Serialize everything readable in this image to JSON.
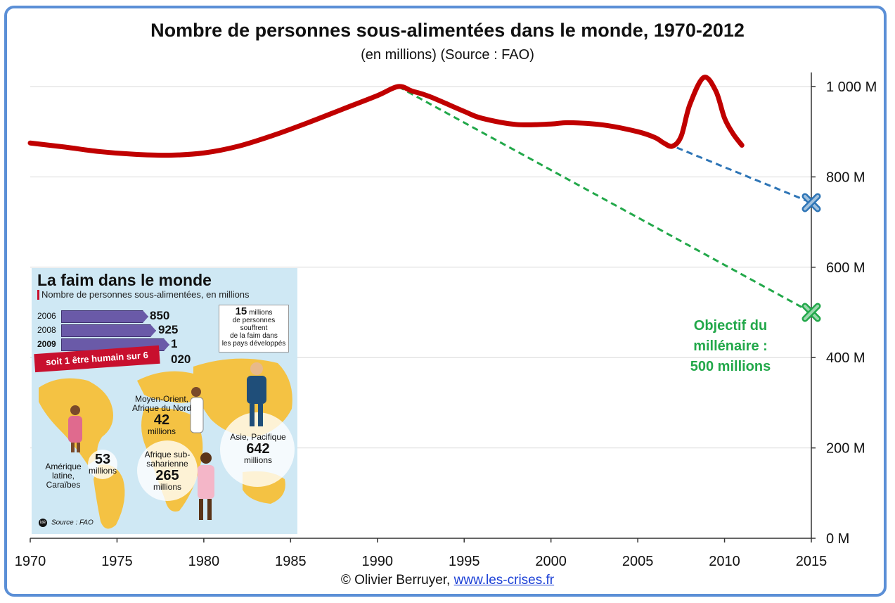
{
  "title": "Nombre de personnes sous-alimentées dans le monde, 1970-2012",
  "subtitle": "(en millions) (Source : FAO)",
  "footer": {
    "credit": "© Olivier Berruyer, ",
    "link_text": "www.les-crises.fr"
  },
  "colors": {
    "main_series": "#c00000",
    "blue_trend": "#2e75b6",
    "green_trend": "#22a84a",
    "frame": "#5b8fd6",
    "grid": "#d9d9d9"
  },
  "annotation": {
    "line1": "Objectif du",
    "line2": "millénaire :",
    "line3": "500 millions"
  },
  "chart_data": {
    "type": "line",
    "title": "Nombre de personnes sous-alimentées dans le monde, 1970-2012",
    "subtitle": "(en millions) (Source : FAO)",
    "xlim": [
      1970,
      2015
    ],
    "ylim": [
      0,
      1000
    ],
    "x_ticks": [
      1970,
      1975,
      1980,
      1985,
      1990,
      1995,
      2000,
      2005,
      2010,
      2015
    ],
    "x_tick_labels": [
      "1970",
      "1975",
      "1980",
      "1985",
      "1990",
      "1995",
      "2000",
      "2005",
      "2010",
      "2015"
    ],
    "y_ticks": [
      0,
      200,
      400,
      600,
      800,
      1000
    ],
    "y_tick_labels": [
      "0 M",
      "200 M",
      "400 M",
      "600 M",
      "800 M",
      "1 000 M"
    ],
    "y_axis_side": "right",
    "grid": true,
    "series": [
      {
        "points": [
          [
            1970,
            875
          ],
          [
            1972,
            866
          ],
          [
            1974,
            856
          ],
          [
            1976,
            850
          ],
          [
            1978,
            848
          ],
          [
            1980,
            853
          ],
          [
            1982,
            868
          ],
          [
            1984,
            892
          ],
          [
            1986,
            920
          ],
          [
            1988,
            950
          ],
          [
            1990,
            980
          ],
          [
            1991.2,
            1000
          ],
          [
            1992,
            990
          ],
          [
            1993,
            978
          ],
          [
            1995,
            945
          ],
          [
            1996,
            930
          ],
          [
            1998,
            916
          ],
          [
            2000,
            917
          ],
          [
            2001,
            920
          ],
          [
            2003,
            915
          ],
          [
            2005,
            900
          ],
          [
            2006,
            887
          ],
          [
            2006.5,
            875
          ],
          [
            2007,
            868
          ],
          [
            2007.5,
            890
          ],
          [
            2008,
            960
          ],
          [
            2008.8,
            1020
          ],
          [
            2009.5,
            990
          ],
          [
            2010,
            930
          ],
          [
            2010.5,
            895
          ],
          [
            2011,
            870
          ]
        ],
        "style": "solid"
      },
      {
        "points": [
          [
            2005,
            900
          ],
          [
            2015,
            743
          ]
        ],
        "style": "dashed"
      },
      {
        "points": [
          [
            1991.2,
            1000
          ],
          [
            2015,
            500
          ]
        ],
        "style": "dashed"
      }
    ],
    "markers": [
      {
        "x": 2015,
        "y": 743,
        "shape": "x",
        "color": "#2e75b6"
      },
      {
        "x": 2015,
        "y": 500,
        "shape": "x",
        "color": "#22a84a"
      }
    ]
  },
  "inset": {
    "title": "La faim dans le monde",
    "subtitle": "Nombre de personnes sous-alimentées, en millions",
    "bars": [
      {
        "year": "2006",
        "value": 850,
        "label": "850"
      },
      {
        "year": "2008",
        "value": 925,
        "label": "925"
      },
      {
        "year": "2009",
        "value": 1020,
        "label": "1 020"
      }
    ],
    "ribbon": "soit 1 être humain sur 6",
    "box": {
      "number": "15",
      "line1": "millions",
      "line2": "de personnes",
      "line3": "souffrent",
      "line4": "de la faim dans",
      "line5": "les pays développés"
    },
    "regions": [
      {
        "name1": "Moyen-Orient,",
        "name2": "Afrique du Nord",
        "value": "42",
        "unit": "millions"
      },
      {
        "name1": "Asie, Pacifique",
        "value": "642",
        "unit": "millions"
      },
      {
        "name1": "Afrique sub-",
        "name2": "saharienne",
        "value": "265",
        "unit": "millions"
      },
      {
        "name1": "Amérique",
        "name2": "latine,",
        "name3": "Caraïbes"
      },
      {
        "value": "53",
        "unit": "millions"
      }
    ],
    "logo": "idé",
    "source": "Source : FAO"
  }
}
